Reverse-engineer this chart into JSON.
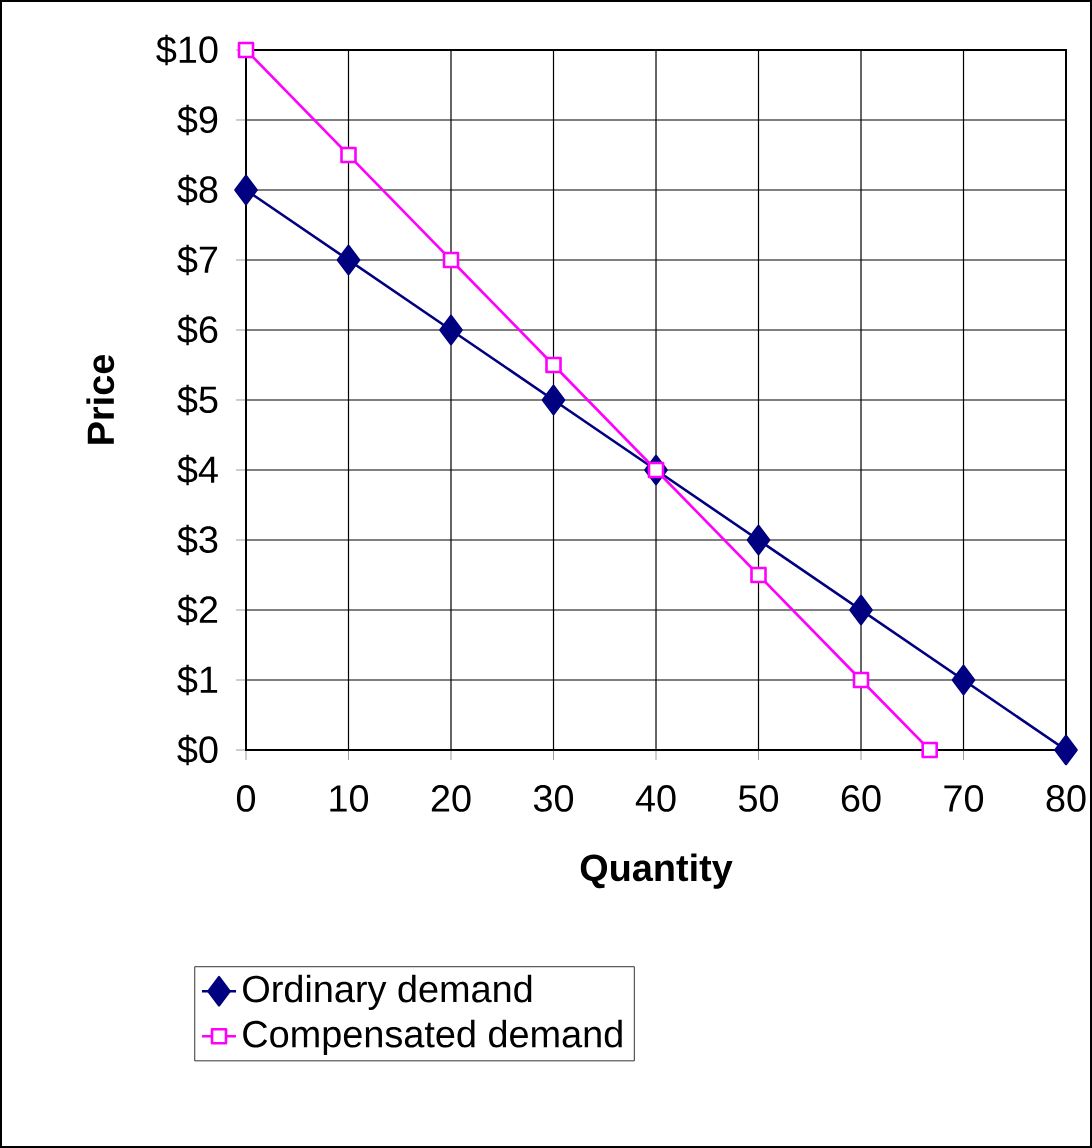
{
  "chart_data": {
    "type": "line",
    "xlabel": "Quantity",
    "ylabel": "Price",
    "xlim": [
      0,
      80
    ],
    "ylim": [
      0,
      10
    ],
    "xticks": [
      0,
      10,
      20,
      30,
      40,
      50,
      60,
      70,
      80
    ],
    "yticks": [
      {
        "value": 0,
        "label": "$0"
      },
      {
        "value": 1,
        "label": "$1"
      },
      {
        "value": 2,
        "label": "$2"
      },
      {
        "value": 3,
        "label": "$3"
      },
      {
        "value": 4,
        "label": "$4"
      },
      {
        "value": 5,
        "label": "$5"
      },
      {
        "value": 6,
        "label": "$6"
      },
      {
        "value": 7,
        "label": "$7"
      },
      {
        "value": 8,
        "label": "$8"
      },
      {
        "value": 9,
        "label": "$9"
      },
      {
        "value": 10,
        "label": "$10"
      }
    ],
    "grid": true,
    "legend": "bottom",
    "series": [
      {
        "name": "Ordinary demand",
        "color": "#000080",
        "marker": "diamond",
        "x": [
          0,
          10,
          20,
          30,
          40,
          50,
          60,
          70,
          80
        ],
        "values": [
          8,
          7,
          6,
          5,
          4,
          3,
          2,
          1,
          0
        ]
      },
      {
        "name": "Compensated demand",
        "color": "#ff00ff",
        "marker": "square",
        "x": [
          0,
          10,
          20,
          30,
          40,
          50,
          60,
          66.7
        ],
        "values": [
          10,
          8.5,
          7,
          5.5,
          4,
          2.5,
          1,
          0
        ]
      }
    ]
  }
}
